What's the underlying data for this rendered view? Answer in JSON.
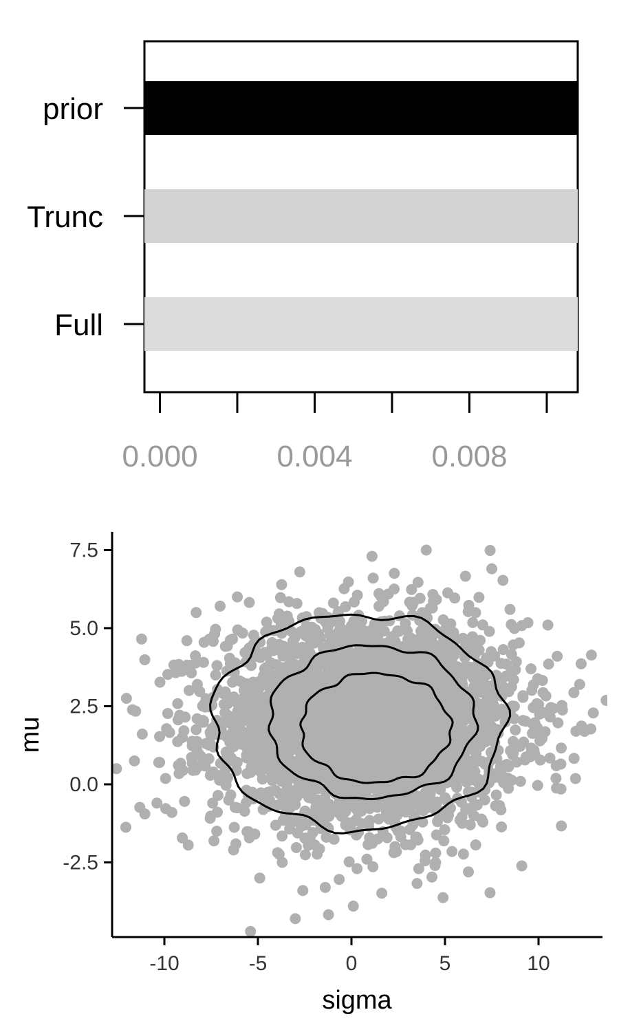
{
  "chart_data": [
    {
      "type": "bar",
      "orientation": "horizontal",
      "categories": [
        "prior",
        "Trunc",
        "Full"
      ],
      "values": [
        0.0108,
        0.0108,
        0.0108
      ],
      "bar_colors": [
        "#000000",
        "#d3d3d3",
        "#dcdcdc"
      ],
      "xlim": [
        -0.0004,
        0.0108
      ],
      "x_ticks": [
        0.0,
        0.002,
        0.004,
        0.006,
        0.008,
        0.01
      ],
      "x_tick_labels": [
        {
          "value": 0.0,
          "label": "0.000"
        },
        {
          "value": 0.004,
          "label": "0.004"
        },
        {
          "value": 0.008,
          "label": "0.008"
        }
      ],
      "title": "",
      "xlabel": "",
      "ylabel": ""
    },
    {
      "type": "scatter",
      "xlabel": "sigma",
      "ylabel": "mu",
      "xlim": [
        -12.8,
        13.5
      ],
      "ylim": [
        -4.8,
        8.1
      ],
      "x_ticks": [
        -10,
        -5,
        0,
        5,
        10
      ],
      "x_tick_labels": [
        "-10",
        "-5",
        "0",
        "5",
        "10"
      ],
      "y_ticks": [
        -2.5,
        0.0,
        2.5,
        5.0,
        7.5
      ],
      "y_tick_labels": [
        "-2.5",
        "0.0",
        "2.5",
        "5.0",
        "7.5"
      ],
      "point_color": "#b0b0b0",
      "contour_color": "#000000",
      "distribution": {
        "mean_x": 0.8,
        "mean_y": 2.0,
        "sd_x": 4.0,
        "sd_y": 1.6,
        "n_points": 3500
      },
      "outlier_points": [
        {
          "x": -11.6,
          "y": 0.75
        },
        {
          "x": -10.4,
          "y": -0.6
        },
        {
          "x": -10.3,
          "y": 0.7
        },
        {
          "x": -9.6,
          "y": -0.9
        },
        {
          "x": -8.8,
          "y": 4.6
        },
        {
          "x": -8.3,
          "y": 5.5
        },
        {
          "x": -6.1,
          "y": 6.0
        },
        {
          "x": -6.3,
          "y": -2.1
        },
        {
          "x": -4.9,
          "y": -3.0
        },
        {
          "x": -3.7,
          "y": -2.5
        },
        {
          "x": -2.6,
          "y": -3.4
        },
        {
          "x": -3.0,
          "y": -4.3
        },
        {
          "x": -1.4,
          "y": -3.3
        },
        {
          "x": 0.1,
          "y": -3.9
        },
        {
          "x": 0.3,
          "y": -2.7
        },
        {
          "x": 1.1,
          "y": 7.3
        },
        {
          "x": 4.0,
          "y": 7.5
        },
        {
          "x": 7.5,
          "y": 6.9
        },
        {
          "x": 10.5,
          "y": 5.1
        },
        {
          "x": 12.2,
          "y": 3.2
        },
        {
          "x": 12.0,
          "y": 1.7
        },
        {
          "x": 11.2,
          "y": -0.15
        },
        {
          "x": 4.5,
          "y": -2.5
        },
        {
          "x": 3.6,
          "y": -2.7
        },
        {
          "x": 11.0,
          "y": 4.1
        },
        {
          "x": -7.2,
          "y": -1.5
        }
      ],
      "contours": [
        {
          "level": "outer",
          "cx": 0.4,
          "cy": 2.0,
          "rx": 7.8,
          "ry": 3.45
        },
        {
          "level": "middle",
          "cx": 1.1,
          "cy": 2.0,
          "rx": 5.5,
          "ry": 2.45
        },
        {
          "level": "inner",
          "cx": 1.3,
          "cy": 1.8,
          "rx": 4.0,
          "ry": 1.75
        }
      ]
    }
  ]
}
